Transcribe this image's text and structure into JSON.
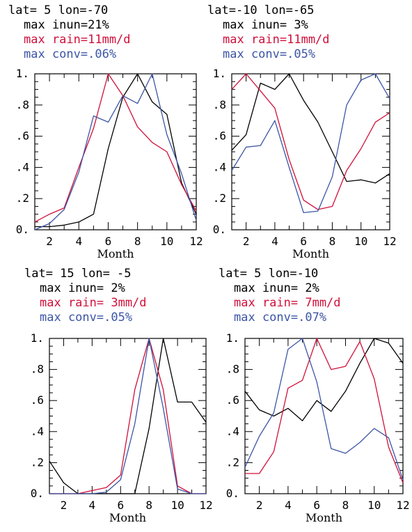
{
  "colors": {
    "inun": "#000000",
    "rain": "#d0103a",
    "conv": "#3c55a5"
  },
  "chart_data": [
    {
      "type": "line",
      "header": [
        "lat=  5 lon=-70",
        "max inun=21%",
        "max rain=11mm/d",
        "max conv=.06%"
      ],
      "xlabel": "Month",
      "xlim": [
        1,
        12
      ],
      "ylim": [
        0,
        1
      ],
      "xticks": [
        "2",
        "4",
        "6",
        "8",
        "10",
        "12"
      ],
      "yticks": [
        "0.",
        ".2",
        ".4",
        ".6",
        ".8",
        "1."
      ],
      "x": [
        1,
        2,
        3,
        4,
        5,
        6,
        7,
        8,
        9,
        10,
        11,
        12
      ],
      "series": [
        {
          "key": "inun",
          "values": [
            0.02,
            0.02,
            0.03,
            0.05,
            0.1,
            0.52,
            0.85,
            1.0,
            0.82,
            0.74,
            0.3,
            0.1
          ]
        },
        {
          "key": "rain",
          "values": [
            0.05,
            0.1,
            0.14,
            0.4,
            0.65,
            1.0,
            0.86,
            0.66,
            0.56,
            0.5,
            0.29,
            0.12
          ]
        },
        {
          "key": "conv",
          "values": [
            0.0,
            0.04,
            0.13,
            0.37,
            0.73,
            0.69,
            0.86,
            0.81,
            1.0,
            0.61,
            0.36,
            0.06
          ]
        }
      ]
    },
    {
      "type": "line",
      "header": [
        "lat=-10 lon=-65",
        "max inun= 3%",
        "max rain=11mm/d",
        "max conv=.05%"
      ],
      "xlabel": "Month",
      "xlim": [
        1,
        12
      ],
      "ylim": [
        0,
        1
      ],
      "xticks": [
        "2",
        "4",
        "6",
        "8",
        "10",
        "12"
      ],
      "yticks": [
        "0.",
        ".2",
        ".4",
        ".6",
        ".8",
        "1."
      ],
      "x": [
        1,
        2,
        3,
        4,
        5,
        6,
        7,
        8,
        9,
        10,
        11,
        12
      ],
      "series": [
        {
          "key": "inun",
          "values": [
            0.51,
            0.61,
            0.94,
            0.9,
            1.0,
            0.83,
            0.69,
            0.5,
            0.31,
            0.32,
            0.3,
            0.36
          ]
        },
        {
          "key": "rain",
          "values": [
            0.9,
            1.0,
            0.89,
            0.78,
            0.45,
            0.19,
            0.13,
            0.15,
            0.38,
            0.52,
            0.69,
            0.75
          ]
        },
        {
          "key": "conv",
          "values": [
            0.38,
            0.53,
            0.54,
            0.7,
            0.4,
            0.11,
            0.12,
            0.34,
            0.8,
            0.96,
            1.0,
            0.84
          ]
        }
      ]
    },
    {
      "type": "line",
      "header": [
        "lat= 15 lon= -5",
        "max inun= 2%",
        "max rain= 3mm/d",
        "max conv=.05%"
      ],
      "xlabel": "Month",
      "xlim": [
        1,
        12
      ],
      "ylim": [
        0,
        1
      ],
      "xticks": [
        "2",
        "4",
        "6",
        "8",
        "10",
        "12"
      ],
      "yticks": [
        "0.",
        ".2",
        ".4",
        ".6",
        ".8",
        "1."
      ],
      "x": [
        1,
        2,
        3,
        4,
        5,
        6,
        7,
        8,
        9,
        10,
        11,
        12
      ],
      "series": [
        {
          "key": "inun",
          "values": [
            0.21,
            0.07,
            0.0,
            0.0,
            0.0,
            0.0,
            0.0,
            0.42,
            1.0,
            0.59,
            0.59,
            0.46
          ]
        },
        {
          "key": "rain",
          "values": [
            0.0,
            0.0,
            0.0,
            0.02,
            0.04,
            0.12,
            0.67,
            1.0,
            0.67,
            0.05,
            0.0,
            0.0
          ]
        },
        {
          "key": "conv",
          "values": [
            0.0,
            0.0,
            0.0,
            0.0,
            0.01,
            0.09,
            0.45,
            1.0,
            0.55,
            0.03,
            0.0,
            0.0
          ]
        }
      ]
    },
    {
      "type": "line",
      "header": [
        "lat=  5 lon=-10",
        "max inun= 2%",
        "max rain= 7mm/d",
        "max conv=.07%"
      ],
      "xlabel": "Month",
      "xlim": [
        1,
        12
      ],
      "ylim": [
        0,
        1
      ],
      "xticks": [
        "2",
        "4",
        "6",
        "8",
        "10",
        "12"
      ],
      "yticks": [
        "0.",
        ".2",
        ".4",
        ".6",
        ".8",
        "1."
      ],
      "x": [
        1,
        2,
        3,
        4,
        5,
        6,
        7,
        8,
        9,
        10,
        11,
        12
      ],
      "series": [
        {
          "key": "inun",
          "values": [
            0.66,
            0.54,
            0.5,
            0.55,
            0.47,
            0.6,
            0.53,
            0.66,
            0.84,
            1.0,
            0.97,
            0.84
          ]
        },
        {
          "key": "rain",
          "values": [
            0.13,
            0.13,
            0.27,
            0.68,
            0.73,
            1.0,
            0.8,
            0.82,
            0.98,
            0.74,
            0.3,
            0.07
          ]
        },
        {
          "key": "conv",
          "values": [
            0.17,
            0.37,
            0.52,
            0.93,
            1.0,
            0.72,
            0.29,
            0.26,
            0.33,
            0.42,
            0.36,
            0.09
          ]
        }
      ]
    }
  ]
}
